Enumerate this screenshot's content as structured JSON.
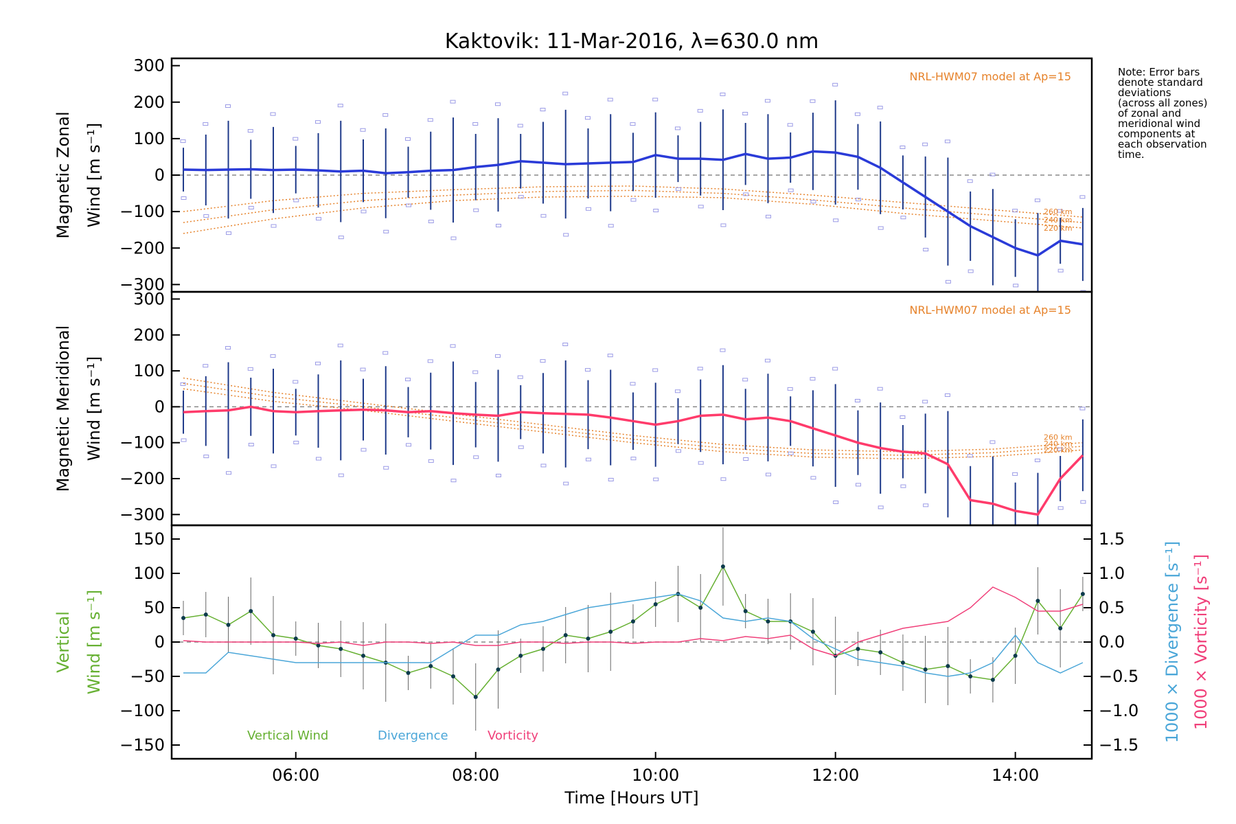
{
  "chart_data": [
    {
      "type": "line",
      "panel": "zonal",
      "title": "Kaktovik: 11-Mar-2016, λ=630.0 nm",
      "ylabel_lines": [
        "Magnetic Zonal",
        "Wind [m s⁻¹]"
      ],
      "ylim": [
        -320,
        320
      ],
      "yticks": [
        "300",
        "200",
        "100",
        "0",
        "−100",
        "−200",
        "−300"
      ],
      "yticks_values": [
        300,
        200,
        100,
        0,
        -100,
        -200,
        -300
      ],
      "model_label": "NRL-HWM07 model at Ap=15",
      "model_altitude_labels": [
        "260 km",
        "240 km",
        "220 km"
      ],
      "series": [
        {
          "color": "#2a3bd8",
          "x": [
            4.75,
            5.0,
            5.25,
            5.5,
            5.75,
            6.0,
            6.25,
            6.5,
            6.75,
            7.0,
            7.25,
            7.5,
            7.75,
            8.0,
            8.25,
            8.5,
            8.75,
            9.0,
            9.25,
            9.5,
            9.75,
            10.0,
            10.25,
            10.5,
            10.75,
            11.0,
            11.25,
            11.5,
            11.75,
            12.0,
            12.25,
            12.5,
            12.75,
            13.0,
            13.25,
            13.5,
            13.75,
            14.0,
            14.25,
            14.5,
            14.75
          ],
          "values": [
            15,
            14,
            15,
            16,
            14,
            15,
            13,
            10,
            12,
            5,
            8,
            12,
            14,
            22,
            28,
            38,
            34,
            30,
            32,
            34,
            36,
            55,
            45,
            45,
            42,
            58,
            45,
            48,
            65,
            62,
            50,
            20,
            -20,
            -60,
            -100,
            -140,
            -170,
            -200,
            -220,
            -180,
            -190
          ]
        }
      ],
      "model_curves": [
        {
          "name": "260 km",
          "values": [
            -100,
            -70,
            -50,
            -40,
            -32,
            -30,
            -38,
            -55,
            -75,
            -95,
            -115
          ]
        },
        {
          "name": "240 km",
          "values": [
            -130,
            -95,
            -70,
            -55,
            -45,
            -42,
            -50,
            -68,
            -90,
            -110,
            -130
          ]
        },
        {
          "name": "220 km",
          "values": [
            -160,
            -120,
            -90,
            -70,
            -60,
            -58,
            -62,
            -80,
            -105,
            -125,
            -145
          ]
        }
      ]
    },
    {
      "type": "line",
      "panel": "meridional",
      "ylabel_lines": [
        "Magnetic Meridional",
        "Wind [m s⁻¹]"
      ],
      "ylim": [
        -330,
        320
      ],
      "yticks": [
        "300",
        "200",
        "100",
        "0",
        "−100",
        "−200",
        "−300"
      ],
      "yticks_values": [
        300,
        200,
        100,
        0,
        -100,
        -200,
        -300
      ],
      "model_label": "NRL-HWM07 model at Ap=15",
      "model_altitude_labels": [
        "260 km",
        "240 km",
        "220 km"
      ],
      "series": [
        {
          "color": "#ff3b6b",
          "x": [
            4.75,
            5.0,
            5.25,
            5.5,
            5.75,
            6.0,
            6.25,
            6.5,
            6.75,
            7.0,
            7.25,
            7.5,
            7.75,
            8.0,
            8.25,
            8.5,
            8.75,
            9.0,
            9.25,
            9.5,
            9.75,
            10.0,
            10.25,
            10.5,
            10.75,
            11.0,
            11.25,
            11.5,
            11.75,
            12.0,
            12.25,
            12.5,
            12.75,
            13.0,
            13.25,
            13.5,
            13.75,
            14.0,
            14.25,
            14.5,
            14.75
          ],
          "values": [
            -15,
            -12,
            -10,
            0,
            -12,
            -15,
            -12,
            -10,
            -8,
            -10,
            -15,
            -12,
            -18,
            -22,
            -25,
            -15,
            -18,
            -20,
            -22,
            -30,
            -40,
            -50,
            -40,
            -25,
            -22,
            -35,
            -30,
            -40,
            -60,
            -80,
            -100,
            -115,
            -125,
            -130,
            -160,
            -260,
            -270,
            -290,
            -300,
            -200,
            -135
          ]
        }
      ],
      "model_curves": [
        {
          "name": "260 km",
          "values": [
            80,
            40,
            10,
            -20,
            -50,
            -80,
            -105,
            -120,
            -125,
            -118,
            -100
          ]
        },
        {
          "name": "240 km",
          "values": [
            65,
            28,
            0,
            -30,
            -60,
            -90,
            -115,
            -130,
            -135,
            -128,
            -110
          ]
        },
        {
          "name": "220 km",
          "values": [
            50,
            15,
            -10,
            -40,
            -70,
            -100,
            -125,
            -140,
            -145,
            -138,
            -120
          ]
        }
      ]
    },
    {
      "type": "line",
      "panel": "vertical",
      "ylabel_lines": [
        "Vertical",
        "Wind [m s⁻¹]"
      ],
      "ylabel_right_1": "1000 × Divergence [s⁻¹]",
      "ylabel_right_2": "1000 × Vorticity [s⁻¹]",
      "xlabel": "Time [Hours UT]",
      "xticks": [
        "06:00",
        "08:00",
        "10:00",
        "12:00",
        "14:00"
      ],
      "xticks_values": [
        6,
        8,
        10,
        12,
        14
      ],
      "xlim": [
        4.62,
        14.85
      ],
      "ylim": [
        -170,
        170
      ],
      "yticks": [
        "150",
        "100",
        "50",
        "0",
        "−50",
        "−100",
        "−150"
      ],
      "yticks_values": [
        150,
        100,
        50,
        0,
        -50,
        -100,
        -150
      ],
      "y2lim": [
        -1.7,
        1.7
      ],
      "y2ticks": [
        "1.5",
        "1.0",
        "0.5",
        "0.0",
        "−0.5",
        "−1.0",
        "−1.5"
      ],
      "y2ticks_values": [
        1.5,
        1.0,
        0.5,
        0.0,
        -0.5,
        -1.0,
        -1.5
      ],
      "legend": [
        "Vertical Wind",
        "Divergence",
        "Vorticity"
      ],
      "series": [
        {
          "name": "Vertical Wind",
          "color": "#66b032",
          "x": [
            4.75,
            5.0,
            5.25,
            5.5,
            5.75,
            6.0,
            6.25,
            6.5,
            6.75,
            7.0,
            7.25,
            7.5,
            7.75,
            8.0,
            8.25,
            8.5,
            8.75,
            9.0,
            9.25,
            9.5,
            9.75,
            10.0,
            10.25,
            10.5,
            10.75,
            11.0,
            11.25,
            11.5,
            11.75,
            12.0,
            12.25,
            12.5,
            12.75,
            13.0,
            13.25,
            13.5,
            13.75,
            14.0,
            14.25,
            14.5,
            14.75
          ],
          "values": [
            35,
            40,
            25,
            45,
            10,
            5,
            -5,
            -10,
            -20,
            -30,
            -45,
            -35,
            -50,
            -80,
            -40,
            -20,
            -10,
            10,
            5,
            15,
            30,
            55,
            70,
            50,
            110,
            45,
            30,
            30,
            15,
            -20,
            -10,
            -15,
            -30,
            -40,
            -35,
            -50,
            -55,
            -20,
            60,
            20,
            70
          ]
        },
        {
          "name": "Divergence",
          "color": "#4aa6d8",
          "axis": "right",
          "x": [
            4.75,
            5.0,
            5.25,
            5.5,
            5.75,
            6.0,
            6.25,
            6.5,
            6.75,
            7.0,
            7.25,
            7.5,
            7.75,
            8.0,
            8.25,
            8.5,
            8.75,
            9.0,
            9.25,
            9.5,
            9.75,
            10.0,
            10.25,
            10.5,
            10.75,
            11.0,
            11.25,
            11.5,
            11.75,
            12.0,
            12.25,
            12.5,
            12.75,
            13.0,
            13.25,
            13.5,
            13.75,
            14.0,
            14.25,
            14.5,
            14.75
          ],
          "values": [
            -0.45,
            -0.45,
            -0.15,
            -0.2,
            -0.25,
            -0.3,
            -0.3,
            -0.3,
            -0.3,
            -0.3,
            -0.3,
            -0.3,
            -0.1,
            0.1,
            0.1,
            0.25,
            0.3,
            0.4,
            0.5,
            0.55,
            0.6,
            0.65,
            0.7,
            0.6,
            0.35,
            0.3,
            0.35,
            0.3,
            0.05,
            -0.1,
            -0.25,
            -0.3,
            -0.35,
            -0.45,
            -0.5,
            -0.45,
            -0.3,
            0.1,
            -0.3,
            -0.45,
            -0.3
          ]
        },
        {
          "name": "Vorticity",
          "color": "#f0407a",
          "axis": "right",
          "x": [
            4.75,
            5.0,
            5.25,
            5.5,
            5.75,
            6.0,
            6.25,
            6.5,
            6.75,
            7.0,
            7.25,
            7.5,
            7.75,
            8.0,
            8.25,
            8.5,
            8.75,
            9.0,
            9.25,
            9.5,
            9.75,
            10.0,
            10.25,
            10.5,
            10.75,
            11.0,
            11.25,
            11.5,
            11.75,
            12.0,
            12.25,
            12.5,
            12.75,
            13.0,
            13.25,
            13.5,
            13.75,
            14.0,
            14.25,
            14.5,
            14.75
          ],
          "values": [
            0.02,
            0.0,
            0.0,
            0.0,
            0.0,
            0.0,
            -0.02,
            0.0,
            -0.05,
            0.0,
            0.0,
            -0.02,
            0.0,
            -0.05,
            -0.05,
            0.0,
            0.0,
            -0.02,
            0.0,
            0.0,
            -0.02,
            0.0,
            0.0,
            0.05,
            0.02,
            0.08,
            0.05,
            0.1,
            -0.1,
            -0.2,
            0.0,
            0.1,
            0.2,
            0.25,
            0.3,
            0.5,
            0.8,
            0.65,
            0.45,
            0.45,
            0.55
          ]
        }
      ],
      "zero_line": true
    }
  ],
  "note": [
    "Note: Error bars",
    "denote standard",
    "deviations",
    "(across all zones)",
    "of zonal and",
    "meridional wind",
    "components at",
    "each observation",
    "time."
  ]
}
